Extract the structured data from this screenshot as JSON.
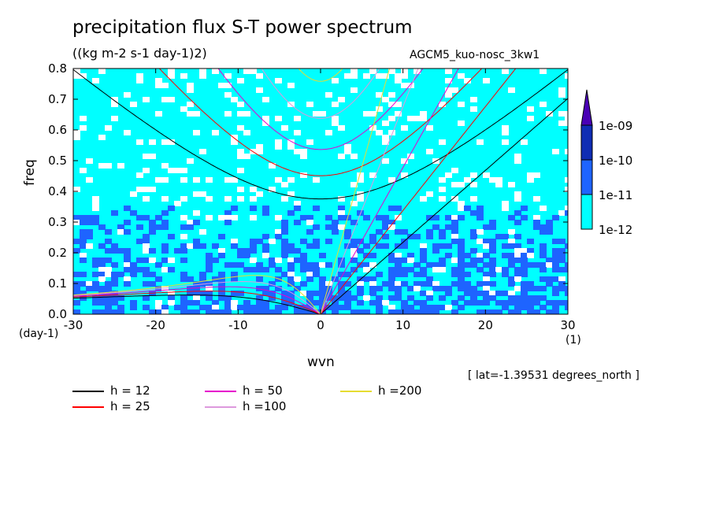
{
  "header": {
    "title": "precipitation flux S-T power spectrum",
    "units": "((kg m-2 s-1 day-1)2)",
    "run_name": "AGCM5_kuo-nosc_3kw1"
  },
  "axes": {
    "y_title": "freq",
    "x_title": "wvn",
    "y_unit": "(day-1)",
    "x_unit": "(1)"
  },
  "footer_note": "[ lat=-1.39531 degrees_north ]",
  "colors": {
    "level_1e12": "#00ffff",
    "level_1e11": "#1e64ff",
    "level_1e10": "#0f2db4",
    "level_1e09": "#4a00b5",
    "h12": "#000000",
    "h25": "#ff0000",
    "h50": "#e600cc",
    "h100": "#dd99dd",
    "h200": "#e6dc32"
  },
  "chart_data": {
    "type": "heatmap",
    "title": "precipitation flux S-T power spectrum",
    "xlabel": "wvn",
    "ylabel": "freq",
    "xlim": [
      -30,
      30
    ],
    "ylim": [
      0,
      0.8
    ],
    "x_ticks": [
      -30,
      -20,
      -10,
      0,
      10,
      20,
      30
    ],
    "x_tick_labels": [
      "-30",
      "-20",
      "-10",
      "0",
      "10",
      "20",
      "30"
    ],
    "y_ticks": [
      0,
      0.1,
      0.2,
      0.3,
      0.4,
      0.5,
      0.6,
      0.7,
      0.8
    ],
    "y_tick_labels": [
      "0.0",
      "0.1",
      "0.2",
      "0.3",
      "0.4",
      "0.5",
      "0.6",
      "0.7",
      "0.8"
    ],
    "colorbar": {
      "levels": [
        "1e-12",
        "1e-11",
        "1e-10",
        "1e-09"
      ],
      "colors": [
        "#00ffff",
        "#1e64ff",
        "#0f2db4",
        "#4a00b5"
      ],
      "extend": "max"
    },
    "dispersion_curves": [
      {
        "label": "h = 12",
        "h": 12,
        "color": "#000000"
      },
      {
        "label": "h = 25",
        "h": 25,
        "color": "#ff0000"
      },
      {
        "label": "h = 50",
        "h": 50,
        "color": "#e600cc"
      },
      {
        "label": "h =100",
        "h": 100,
        "color": "#dd99dd"
      },
      {
        "label": "h =200",
        "h": 200,
        "color": "#e6dc32"
      }
    ],
    "grid": false
  }
}
